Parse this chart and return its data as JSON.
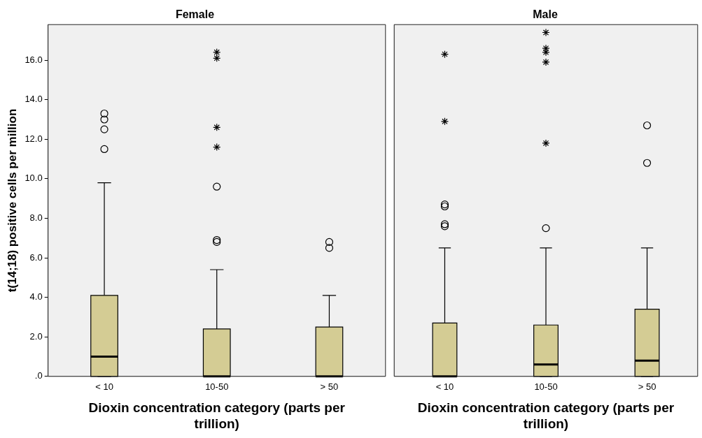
{
  "chart_data": [
    {
      "type": "box",
      "title": "Female",
      "xlabel": "Dioxin concentration category (parts per trillion)",
      "ylabel": "t(14;18) positive cells per million",
      "categories": [
        "< 10",
        "10-50",
        "> 50"
      ],
      "color": "#d4cc94",
      "boxes": [
        {
          "low": 0,
          "q1": 0,
          "median": 1.0,
          "q3": 4.1,
          "high": 9.8
        },
        {
          "low": 0,
          "q1": 0,
          "median": 0,
          "q3": 2.4,
          "high": 5.4
        },
        {
          "low": 0,
          "q1": 0,
          "median": 0,
          "q3": 2.5,
          "high": 4.1
        }
      ],
      "series": [
        {
          "type": "scatter",
          "marker": "circle",
          "color": "#000000",
          "x": [
            "< 10",
            "< 10",
            "< 10",
            "< 10",
            "10-50",
            "10-50",
            "10-50",
            "> 50",
            "> 50"
          ],
          "values": [
            13.3,
            13.0,
            12.5,
            11.5,
            9.6,
            6.9,
            6.8,
            6.8,
            6.5
          ]
        },
        {
          "type": "scatter",
          "marker": "cross",
          "color": "#000000",
          "x": [
            "10-50",
            "10-50",
            "10-50",
            "10-50"
          ],
          "values": [
            16.4,
            16.1,
            12.6,
            11.6
          ]
        }
      ],
      "ylim": [
        0,
        17.8
      ],
      "yticks": [
        {
          "value": 0,
          "label": ".0"
        },
        {
          "value": 2,
          "label": "2.0"
        },
        {
          "value": 4,
          "label": "4.0"
        },
        {
          "value": 6,
          "label": "6.0"
        },
        {
          "value": 8,
          "label": "8.0"
        },
        {
          "value": 10,
          "label": "10.0"
        },
        {
          "value": 12,
          "label": "12.0"
        },
        {
          "value": 14,
          "label": "14.0"
        },
        {
          "value": 16,
          "label": "16.0"
        }
      ],
      "grid": false
    },
    {
      "type": "box",
      "title": "Male",
      "xlabel": "Dioxin concentration category (parts per trillion)",
      "categories": [
        "< 10",
        "10-50",
        "> 50"
      ],
      "color": "#d4cc94",
      "boxes": [
        {
          "low": 0,
          "q1": 0,
          "median": 0,
          "q3": 2.7,
          "high": 6.5
        },
        {
          "low": 0,
          "q1": 0,
          "median": 0.6,
          "q3": 2.6,
          "high": 6.5
        },
        {
          "low": 0,
          "q1": 0,
          "median": 0.8,
          "q3": 3.4,
          "high": 6.5
        }
      ],
      "series": [
        {
          "type": "scatter",
          "marker": "circle",
          "color": "#000000",
          "x": [
            "< 10",
            "< 10",
            "< 10",
            "< 10",
            "10-50",
            "> 50",
            "> 50"
          ],
          "values": [
            8.7,
            8.6,
            7.7,
            7.6,
            7.5,
            12.7,
            10.8
          ]
        },
        {
          "type": "scatter",
          "marker": "cross",
          "color": "#000000",
          "x": [
            "< 10",
            "< 10",
            "10-50",
            "10-50",
            "10-50",
            "10-50",
            "10-50"
          ],
          "values": [
            16.3,
            12.9,
            17.4,
            16.6,
            16.4,
            15.9,
            11.8
          ]
        }
      ],
      "ylim": [
        0,
        17.8
      ],
      "grid": false,
      "tick_labels": "x"
    }
  ]
}
